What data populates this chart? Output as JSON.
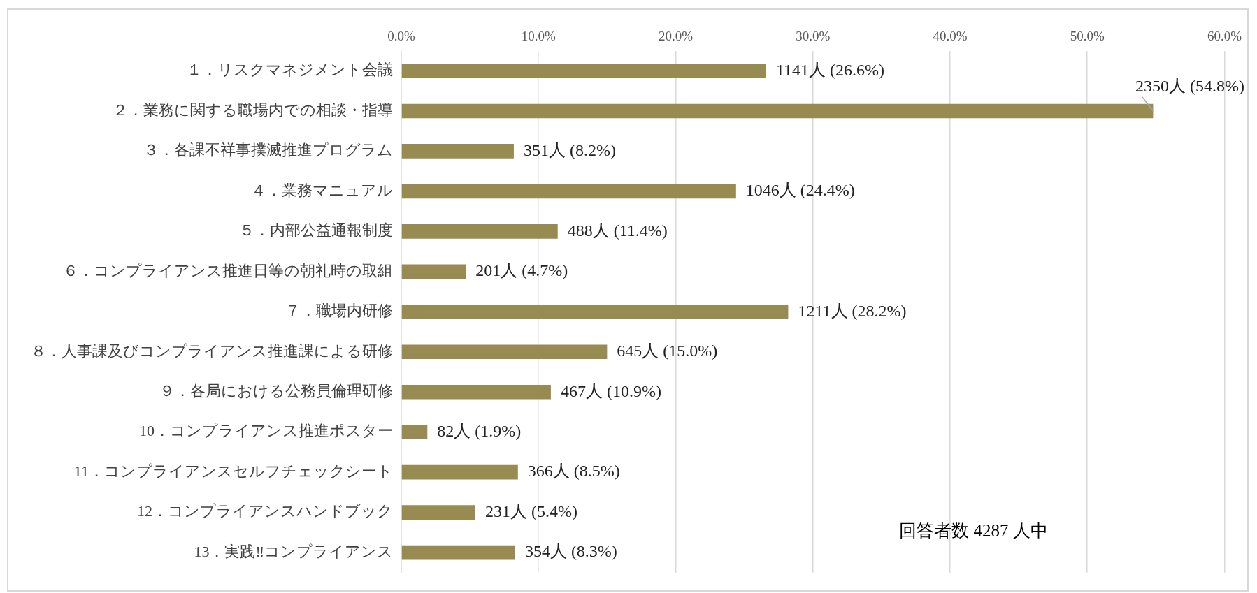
{
  "chart_data": {
    "type": "bar",
    "orientation": "horizontal",
    "categories": [
      "１．リスクマネジメント会議",
      "２．業務に関する職場内での相談・指導",
      "３．各課不祥事撲滅推進プログラム",
      "４．業務マニュアル",
      "５．内部公益通報制度",
      "６．コンプライアンス推進日等の朝礼時の取組",
      "７．職場内研修",
      "８．人事課及びコンプライアンス推進課による研修",
      "９．各局における公務員倫理研修",
      "10．コンプライアンス推進ポスター",
      "11．コンプライアンスセルフチェックシート",
      "12．コンプライアンスハンドブック",
      "13．実践‼コンプライアンス"
    ],
    "values": [
      26.6,
      54.8,
      8.2,
      24.4,
      11.4,
      4.7,
      28.2,
      15.0,
      10.9,
      1.9,
      8.5,
      5.4,
      8.3
    ],
    "value_labels": [
      "1141人 (26.6%)",
      "2350人 (54.8%)",
      "351人 (8.2%)",
      "1046人 (24.4%)",
      "488人 (11.4%)",
      "201人 (4.7%)",
      "1211人 (28.2%)",
      "645人 (15.0%)",
      "467人 (10.9%)",
      "82人 (1.9%)",
      "366人 (8.5%)",
      "231人 (5.4%)",
      "354人 (8.3%)"
    ],
    "color": "#978b51",
    "xlim": [
      0,
      60
    ],
    "xticks": [
      {
        "value": 0,
        "label": "0.0%"
      },
      {
        "value": 10,
        "label": "10.0%"
      },
      {
        "value": 20,
        "label": "20.0%"
      },
      {
        "value": 30,
        "label": "30.0%"
      },
      {
        "value": 40,
        "label": "40.0%"
      },
      {
        "value": 50,
        "label": "50.0%"
      },
      {
        "value": 60,
        "label": "60.0%"
      }
    ],
    "grid": "x",
    "annotations": [
      "回答者数 4287 人中"
    ]
  }
}
